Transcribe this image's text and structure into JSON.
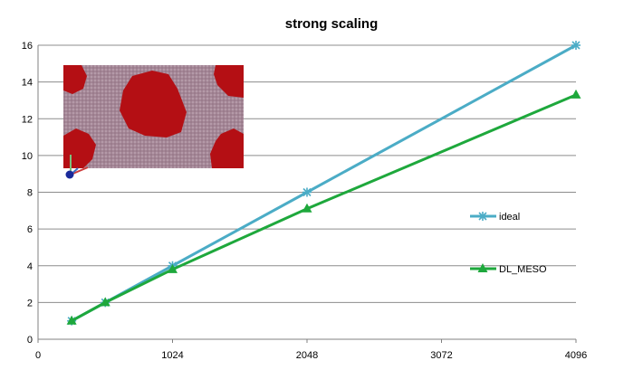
{
  "chart_data": {
    "type": "line",
    "title": "strong scaling",
    "xlabel": "",
    "ylabel": "",
    "xlim": [
      0,
      4096
    ],
    "ylim": [
      0,
      16
    ],
    "x_ticks": [
      0,
      1024,
      2048,
      3072,
      4096
    ],
    "y_ticks": [
      0,
      2,
      4,
      6,
      8,
      10,
      12,
      14,
      16
    ],
    "grid": "horizontal",
    "legend_placement": "right",
    "series": [
      {
        "name": "ideal",
        "color": "#4bacc6",
        "marker": "asterisk",
        "x": [
          256,
          512,
          1024,
          2048,
          4096
        ],
        "y": [
          1,
          2,
          4,
          8,
          16
        ]
      },
      {
        "name": "DL_MESO",
        "color": "#1ea83c",
        "marker": "triangle",
        "x": [
          256,
          512,
          1024,
          2048,
          4096
        ],
        "y": [
          1,
          2,
          3.8,
          7.1,
          13.3
        ]
      }
    ]
  },
  "inset": {
    "icon": "simulation-snapshot-image",
    "colors": {
      "background": "#a88a9a",
      "domain": "#b40f14"
    }
  }
}
